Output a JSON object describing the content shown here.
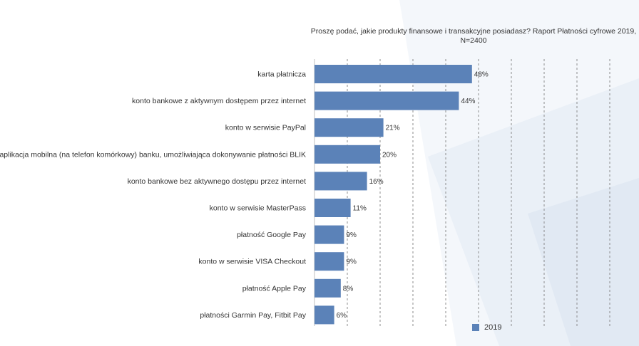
{
  "colors": {
    "bar": "#5b82b8",
    "grid": "#8c8c8c",
    "background_shape": "#eef3f8",
    "background_shape_dark": "#e3ebf4"
  },
  "chart_data": {
    "type": "bar",
    "orientation": "horizontal",
    "title": "Proszę podać, jakie produkty finansowe i transakcyjne posiadasz? Raport Płatności cyfrowe 2019, N=2400",
    "categories": [
      "karta płatnicza",
      "konto bankowe z aktywnym dostępem przez internet",
      "konto w serwisie PayPal",
      "aplikacja mobilna (na telefon komórkowy) banku, umożliwiająca dokonywanie płatności BLIK",
      "konto bankowe bez aktywnego dostępu przez internet",
      "konto w serwisie MasterPass",
      "płatność Google Pay",
      "konto w serwisie VISA Checkout",
      "płatność Apple Pay",
      "płatności Garmin Pay, Fitbit Pay"
    ],
    "series": [
      {
        "name": "2019",
        "values": [
          48,
          44,
          21,
          20,
          16,
          11,
          9,
          9,
          8,
          6
        ],
        "labels": [
          "48%",
          "44%",
          "21%",
          "20%",
          "16%",
          "11%",
          "9%",
          "9%",
          "8%",
          "6%"
        ]
      }
    ],
    "xlim": [
      0,
      100
    ],
    "grid": true,
    "legend_position": "bottom-right"
  }
}
